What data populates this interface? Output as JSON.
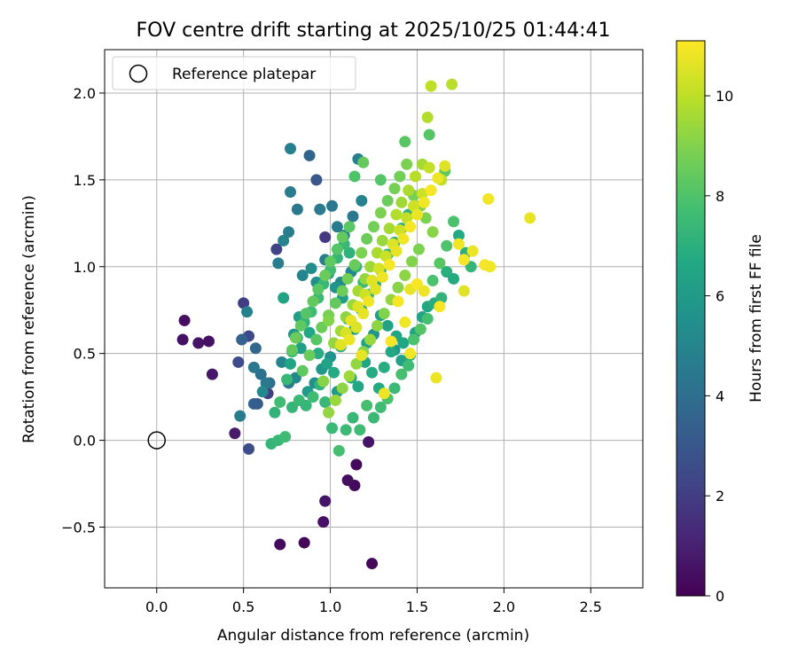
{
  "chart_data": {
    "type": "scatter",
    "title": "FOV centre drift starting at 2025/10/25 01:44:41",
    "xlabel": "Angular distance from reference (arcmin)",
    "ylabel": "Rotation from reference (arcmin)",
    "xlim": [
      -0.3,
      2.8
    ],
    "ylim": [
      -0.85,
      2.25
    ],
    "xticks": [
      0.0,
      0.5,
      1.0,
      1.5,
      2.0,
      2.5
    ],
    "xtick_labels": [
      "0.0",
      "0.5",
      "1.0",
      "1.5",
      "2.0",
      "2.5"
    ],
    "yticks": [
      -0.5,
      0.0,
      0.5,
      1.0,
      1.5,
      2.0
    ],
    "ytick_labels": [
      "−0.5",
      "0.0",
      "0.5",
      "1.0",
      "1.5",
      "2.0"
    ],
    "grid": true,
    "legend": {
      "location": "upper-left",
      "entries": [
        "Reference platepar"
      ]
    },
    "reference_point": {
      "x": 0.0,
      "y": 0.0,
      "label": "Reference platepar"
    },
    "colorbar": {
      "label": "Hours from first FF file",
      "range": [
        0,
        11.1
      ],
      "ticks": [
        0,
        2,
        4,
        6,
        8,
        10
      ],
      "tick_labels": [
        "0",
        "2",
        "4",
        "6",
        "8",
        "10"
      ],
      "colormap": "viridis"
    },
    "points": [
      [
        0.16,
        0.69,
        0.4
      ],
      [
        0.15,
        0.58,
        0.5
      ],
      [
        0.24,
        0.56,
        0.6
      ],
      [
        0.3,
        0.57,
        0.5
      ],
      [
        0.32,
        0.38,
        0.7
      ],
      [
        0.45,
        0.04,
        0.8
      ],
      [
        1.14,
        -0.26,
        0.3
      ],
      [
        1.24,
        -0.71,
        0.2
      ],
      [
        0.71,
        -0.6,
        0.3
      ],
      [
        0.85,
        -0.59,
        0.2
      ],
      [
        0.96,
        -0.47,
        0.5
      ],
      [
        1.1,
        -0.23,
        0.4
      ],
      [
        1.15,
        -0.14,
        0.3
      ],
      [
        1.22,
        -0.01,
        0.6
      ],
      [
        0.97,
        -0.35,
        0.6
      ],
      [
        0.5,
        0.79,
        2.0
      ],
      [
        0.69,
        1.1,
        2.2
      ],
      [
        0.53,
        0.6,
        2.4
      ],
      [
        0.47,
        0.45,
        2.6
      ],
      [
        0.64,
        0.27,
        2.0
      ],
      [
        0.97,
        1.17,
        1.8
      ],
      [
        0.92,
        1.5,
        3.0
      ],
      [
        0.88,
        1.64,
        3.6
      ],
      [
        0.53,
        -0.05,
        2.6
      ],
      [
        0.49,
        0.58,
        3.4
      ],
      [
        0.56,
        0.21,
        3.5
      ],
      [
        0.58,
        0.21,
        3.2
      ],
      [
        0.57,
        0.53,
        3.7
      ],
      [
        0.6,
        0.38,
        4.1
      ],
      [
        0.65,
        0.33,
        3.9
      ],
      [
        0.77,
        1.68,
        4.8
      ],
      [
        0.77,
        1.43,
        4.6
      ],
      [
        0.81,
        1.33,
        4.4
      ],
      [
        0.76,
        1.2,
        4.7
      ],
      [
        0.73,
        1.15,
        4.9
      ],
      [
        0.7,
        1.02,
        4.6
      ],
      [
        0.94,
        1.33,
        4.5
      ],
      [
        0.97,
        1.04,
        4.7
      ],
      [
        1.01,
        1.35,
        4.5
      ],
      [
        1.04,
        1.23,
        4.6
      ],
      [
        1.08,
        1.18,
        5.0
      ],
      [
        1.13,
        1.29,
        4.5
      ],
      [
        1.16,
        1.62,
        4.8
      ],
      [
        1.18,
        1.38,
        4.9
      ],
      [
        1.12,
        0.97,
        5.1
      ],
      [
        1.06,
        0.91,
        5.3
      ],
      [
        0.48,
        0.14,
        4.6
      ],
      [
        0.52,
        0.74,
        4.8
      ],
      [
        0.56,
        0.42,
        4.4
      ],
      [
        0.63,
        0.33,
        4.4
      ],
      [
        0.61,
        0.28,
        5.2
      ],
      [
        0.72,
        0.45,
        5.0
      ],
      [
        0.76,
        0.33,
        4.4
      ],
      [
        0.8,
        0.36,
        5.2
      ],
      [
        0.84,
        0.95,
        5.0
      ],
      [
        0.89,
        0.99,
        5.4
      ],
      [
        0.92,
        0.91,
        5.5
      ],
      [
        0.99,
        0.96,
        5.8
      ],
      [
        1.03,
        0.88,
        5.7
      ],
      [
        1.07,
        0.82,
        6.1
      ],
      [
        1.1,
        0.7,
        6.3
      ],
      [
        1.14,
        0.64,
        5.9
      ],
      [
        1.18,
        0.75,
        6.2
      ],
      [
        1.21,
        0.56,
        6.4
      ],
      [
        1.25,
        0.61,
        5.8
      ],
      [
        1.29,
        0.72,
        6.2
      ],
      [
        1.33,
        0.66,
        6.4
      ],
      [
        1.37,
        0.52,
        5.9
      ],
      [
        1.41,
        0.46,
        6.3
      ],
      [
        1.04,
        0.28,
        6.0
      ],
      [
        1.0,
        0.48,
        5.6
      ],
      [
        0.95,
        0.41,
        5.8
      ],
      [
        0.91,
        0.33,
        5.5
      ],
      [
        0.87,
        0.28,
        6.0
      ],
      [
        0.83,
        0.53,
        6.2
      ],
      [
        0.79,
        0.61,
        5.9
      ],
      [
        0.73,
        0.82,
        6.4
      ],
      [
        0.77,
        0.44,
        6.5
      ],
      [
        0.82,
        0.71,
        6.2
      ],
      [
        0.88,
        0.62,
        6.6
      ],
      [
        0.93,
        0.5,
        6.9
      ],
      [
        0.98,
        0.44,
        6.4
      ],
      [
        1.02,
        0.39,
        6.7
      ],
      [
        1.06,
        0.54,
        6.8
      ],
      [
        1.12,
        0.36,
        6.6
      ],
      [
        1.16,
        0.31,
        6.6
      ],
      [
        1.2,
        0.45,
        6.5
      ],
      [
        1.24,
        0.39,
        6.8
      ],
      [
        1.28,
        0.3,
        6.7
      ],
      [
        1.31,
        0.42,
        6.9
      ],
      [
        1.35,
        0.51,
        6.6
      ],
      [
        1.38,
        0.6,
        6.5
      ],
      [
        1.42,
        0.56,
        6.6
      ],
      [
        1.46,
        0.49,
        6.9
      ],
      [
        1.49,
        0.62,
        6.5
      ],
      [
        1.53,
        0.71,
        6.4
      ],
      [
        1.56,
        0.77,
        6.6
      ],
      [
        1.6,
        0.79,
        6.9
      ],
      [
        1.64,
        0.82,
        7.2
      ],
      [
        1.67,
        0.97,
        7.0
      ],
      [
        1.71,
        0.93,
        6.8
      ],
      [
        1.74,
        1.18,
        6.7
      ],
      [
        1.78,
        1.08,
        7.0
      ],
      [
        1.81,
        1.0,
        7.3
      ],
      [
        1.45,
        1.3,
        7.1
      ],
      [
        1.41,
        1.22,
        6.9
      ],
      [
        1.37,
        1.14,
        7.0
      ],
      [
        1.33,
        1.07,
        7.2
      ],
      [
        1.29,
        0.98,
        7.1
      ],
      [
        1.26,
        0.9,
        6.9
      ],
      [
        1.22,
        0.84,
        7.3
      ],
      [
        1.19,
        0.91,
        7.5
      ],
      [
        1.15,
        1.0,
        7.2
      ],
      [
        1.11,
        1.08,
        7.1
      ],
      [
        1.08,
        1.13,
        7.4
      ],
      [
        1.04,
        1.05,
        7.3
      ],
      [
        1.0,
        0.98,
        7.6
      ],
      [
        0.96,
        0.9,
        7.4
      ],
      [
        0.93,
        0.82,
        7.5
      ],
      [
        0.89,
        0.74,
        7.6
      ],
      [
        0.85,
        0.68,
        7.2
      ],
      [
        0.81,
        0.59,
        7.5
      ],
      [
        0.78,
        0.51,
        7.3
      ],
      [
        0.75,
        0.35,
        7.4
      ],
      [
        0.71,
        0.22,
        7.6
      ],
      [
        0.68,
        0.16,
        7.2
      ],
      [
        0.66,
        -0.02,
        7.3
      ],
      [
        0.7,
        0.0,
        7.4
      ],
      [
        0.74,
        0.02,
        7.6
      ],
      [
        0.78,
        0.19,
        7.3
      ],
      [
        0.82,
        0.23,
        7.5
      ],
      [
        0.86,
        0.2,
        7.3
      ],
      [
        0.9,
        0.25,
        7.6
      ],
      [
        0.94,
        0.32,
        7.2
      ],
      [
        0.97,
        0.22,
        7.4
      ],
      [
        1.01,
        0.07,
        7.5
      ],
      [
        1.05,
        -0.06,
        7.8
      ],
      [
        1.09,
        0.06,
        7.5
      ],
      [
        1.13,
        0.13,
        7.4
      ],
      [
        1.17,
        0.06,
        7.6
      ],
      [
        1.21,
        0.2,
        7.8
      ],
      [
        1.25,
        0.13,
        7.5
      ],
      [
        1.29,
        0.19,
        7.6
      ],
      [
        1.33,
        0.24,
        7.9
      ],
      [
        1.37,
        0.3,
        7.5
      ],
      [
        1.41,
        0.38,
        7.8
      ],
      [
        1.45,
        0.43,
        7.6
      ],
      [
        1.48,
        0.58,
        7.9
      ],
      [
        1.52,
        0.64,
        8.1
      ],
      [
        1.56,
        0.7,
        7.8
      ],
      [
        1.59,
        0.92,
        7.9
      ],
      [
        1.63,
        1.02,
        8.2
      ],
      [
        1.67,
        1.12,
        8.0
      ],
      [
        1.71,
        1.26,
        7.9
      ],
      [
        1.66,
        1.55,
        8.3
      ],
      [
        1.57,
        1.76,
        8.1
      ],
      [
        1.43,
        1.72,
        8.2
      ],
      [
        1.29,
        1.5,
        8.1
      ],
      [
        1.19,
        1.6,
        8.4
      ],
      [
        1.14,
        1.52,
        8.0
      ],
      [
        1.11,
        1.23,
        8.2
      ],
      [
        1.07,
        1.17,
        8.4
      ],
      [
        1.04,
        1.1,
        8.1
      ],
      [
        1.0,
        1.03,
        8.3
      ],
      [
        0.97,
        0.95,
        8.5
      ],
      [
        0.93,
        0.87,
        8.2
      ],
      [
        0.9,
        0.8,
        8.4
      ],
      [
        0.86,
        0.73,
        8.1
      ],
      [
        0.83,
        0.66,
        8.3
      ],
      [
        0.8,
        0.59,
        8.6
      ],
      [
        0.78,
        0.52,
        8.4
      ],
      [
        0.84,
        0.4,
        8.3
      ],
      [
        0.88,
        0.49,
        8.5
      ],
      [
        0.92,
        0.58,
        8.2
      ],
      [
        0.95,
        0.65,
        8.6
      ],
      [
        0.99,
        0.72,
        8.8
      ],
      [
        1.03,
        0.79,
        8.4
      ],
      [
        1.07,
        0.86,
        8.6
      ],
      [
        1.1,
        0.93,
        8.7
      ],
      [
        1.14,
        1.01,
        8.5
      ],
      [
        1.18,
        1.08,
        8.9
      ],
      [
        1.21,
        1.16,
        8.6
      ],
      [
        1.25,
        1.23,
        8.7
      ],
      [
        1.29,
        1.31,
        8.9
      ],
      [
        1.33,
        1.38,
        8.6
      ],
      [
        1.37,
        1.45,
        8.8
      ],
      [
        1.4,
        1.52,
        8.7
      ],
      [
        1.44,
        1.59,
        8.9
      ],
      [
        1.48,
        1.41,
        8.8
      ],
      [
        1.52,
        1.35,
        9.0
      ],
      [
        1.55,
        1.28,
        8.9
      ],
      [
        1.59,
        1.2,
        9.1
      ],
      [
        1.51,
        1.1,
        8.9
      ],
      [
        1.47,
        1.03,
        9.0
      ],
      [
        1.43,
        0.95,
        9.2
      ],
      [
        1.39,
        0.88,
        9.1
      ],
      [
        1.35,
        0.81,
        9.3
      ],
      [
        1.31,
        0.73,
        9.0
      ],
      [
        1.27,
        0.66,
        9.2
      ],
      [
        1.23,
        0.58,
        9.4
      ],
      [
        1.19,
        0.51,
        9.1
      ],
      [
        1.15,
        0.44,
        9.3
      ],
      [
        1.11,
        0.37,
        9.5
      ],
      [
        1.07,
        0.3,
        9.2
      ],
      [
        1.03,
        0.23,
        9.4
      ],
      [
        0.99,
        0.16,
        9.3
      ],
      [
        0.96,
        0.34,
        9.1
      ],
      [
        0.99,
        0.69,
        9.0
      ],
      [
        1.02,
        0.56,
        9.3
      ],
      [
        1.06,
        0.63,
        9.5
      ],
      [
        1.09,
        0.71,
        9.2
      ],
      [
        1.13,
        0.78,
        9.4
      ],
      [
        1.16,
        0.86,
        9.6
      ],
      [
        1.2,
        0.93,
        9.3
      ],
      [
        1.23,
        1.0,
        9.5
      ],
      [
        1.27,
        1.08,
        9.7
      ],
      [
        1.3,
        1.15,
        9.4
      ],
      [
        1.34,
        1.22,
        9.6
      ],
      [
        1.38,
        1.3,
        9.8
      ],
      [
        1.41,
        1.37,
        9.5
      ],
      [
        1.45,
        1.44,
        9.7
      ],
      [
        1.49,
        1.52,
        9.9
      ],
      [
        1.53,
        1.59,
        9.6
      ],
      [
        1.56,
        1.86,
        9.8
      ],
      [
        1.58,
        2.04,
        10.0
      ],
      [
        1.7,
        2.05,
        9.9
      ],
      [
        1.57,
        1.57,
        10.1
      ],
      [
        1.64,
        1.5,
        10.0
      ],
      [
        1.53,
        1.42,
        10.2
      ],
      [
        1.48,
        1.35,
        10.3
      ],
      [
        1.44,
        1.28,
        10.1
      ],
      [
        1.4,
        1.21,
        10.3
      ],
      [
        1.36,
        1.13,
        10.5
      ],
      [
        1.32,
        1.06,
        10.2
      ],
      [
        1.28,
        0.99,
        10.4
      ],
      [
        1.24,
        0.92,
        10.6
      ],
      [
        1.2,
        0.84,
        10.3
      ],
      [
        1.16,
        0.77,
        10.5
      ],
      [
        1.12,
        0.69,
        10.7
      ],
      [
        1.09,
        0.62,
        10.4
      ],
      [
        1.06,
        0.55,
        10.6
      ],
      [
        1.11,
        0.58,
        10.8
      ],
      [
        1.15,
        0.65,
        10.5
      ],
      [
        1.19,
        0.73,
        10.7
      ],
      [
        1.22,
        0.8,
        10.9
      ],
      [
        1.26,
        0.87,
        10.6
      ],
      [
        1.3,
        0.94,
        10.8
      ],
      [
        1.34,
        1.01,
        11.0
      ],
      [
        1.38,
        1.09,
        10.7
      ],
      [
        1.42,
        1.16,
        10.9
      ],
      [
        1.46,
        1.23,
        11.0
      ],
      [
        1.5,
        1.3,
        10.8
      ],
      [
        1.54,
        1.37,
        10.9
      ],
      [
        1.58,
        1.44,
        11.0
      ],
      [
        1.62,
        1.51,
        10.8
      ],
      [
        1.66,
        1.58,
        10.6
      ],
      [
        1.74,
        1.13,
        10.9
      ],
      [
        1.77,
        1.04,
        11.0
      ],
      [
        1.82,
        1.09,
        10.8
      ],
      [
        1.89,
        1.01,
        11.0
      ],
      [
        1.92,
        1.0,
        10.9
      ],
      [
        1.91,
        1.39,
        10.9
      ],
      [
        2.15,
        1.28,
        10.7
      ],
      [
        1.77,
        0.86,
        10.6
      ],
      [
        1.63,
        0.77,
        11.0
      ],
      [
        1.61,
        0.36,
        10.8
      ],
      [
        1.46,
        0.5,
        10.9
      ],
      [
        1.35,
        0.57,
        11.0
      ],
      [
        1.18,
        0.49,
        10.7
      ],
      [
        1.31,
        0.27,
        10.8
      ],
      [
        1.39,
        0.8,
        11.0
      ],
      [
        1.43,
        0.68,
        10.9
      ],
      [
        1.46,
        0.87,
        10.7
      ],
      [
        1.5,
        0.9,
        11.0
      ],
      [
        1.54,
        0.86,
        10.8
      ]
    ]
  }
}
